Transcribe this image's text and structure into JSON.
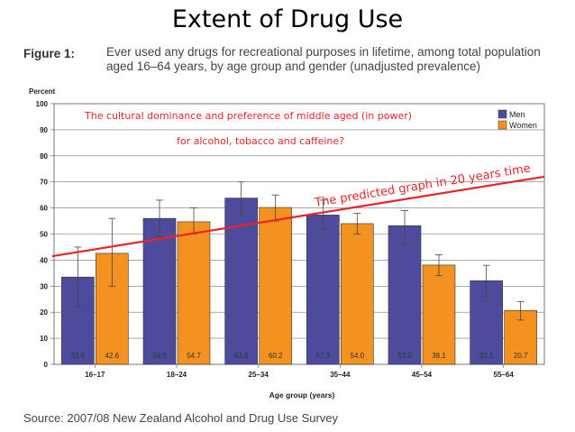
{
  "slide": {
    "title": "Extent of Drug Use",
    "figure_label": "Figure 1:",
    "figure_caption": "Ever used any drugs for recreational purposes in lifetime, among total population aged 16–64 years, by age group and gender (unadjusted prevalence)",
    "source": "Source: 2007/08 New Zealand Alcohol and Drug Use Survey"
  },
  "chart_data": {
    "type": "bar",
    "ylabel": "Percent",
    "xlabel": "Age group (years)",
    "ylim": [
      0,
      100
    ],
    "yticks": [
      0,
      10,
      20,
      30,
      40,
      50,
      60,
      70,
      80,
      90,
      100
    ],
    "categories": [
      "16–17",
      "18–24",
      "25–34",
      "35–44",
      "45–54",
      "55–64"
    ],
    "series": [
      {
        "name": "Men",
        "color": "#4e4a9c",
        "values": [
          33.5,
          56.0,
          63.8,
          57.3,
          53.2,
          32.1
        ],
        "labels": [
          "33.5",
          "56.0",
          "63.8",
          "57.3",
          "53.2",
          "32.1"
        ],
        "err_low": [
          22,
          49,
          57,
          52,
          46,
          26
        ],
        "err_high": [
          45,
          63,
          70,
          63,
          59,
          38
        ]
      },
      {
        "name": "Women",
        "color": "#f39121",
        "values": [
          42.6,
          54.7,
          60.2,
          54.0,
          38.1,
          20.7
        ],
        "labels": [
          "42.6",
          "54.7",
          "60.2",
          "54.0",
          "38.1",
          "20.7"
        ],
        "err_low": [
          30,
          50,
          55,
          50,
          34,
          17
        ],
        "err_high": [
          56,
          60,
          65,
          58,
          42,
          24
        ]
      }
    ],
    "legend_position": "top-right",
    "annotations": {
      "note_line1": "The cultural dominance and preference of middle aged (in power)",
      "note_line2": "for alcohol, tobacco and caffeine?",
      "trend_label": "The predicted graph in 20 years time",
      "trend_line": {
        "start_value": 41.5,
        "end_value": 72
      },
      "note_color": "#e8252a",
      "trend_color": "#e8252a"
    }
  }
}
